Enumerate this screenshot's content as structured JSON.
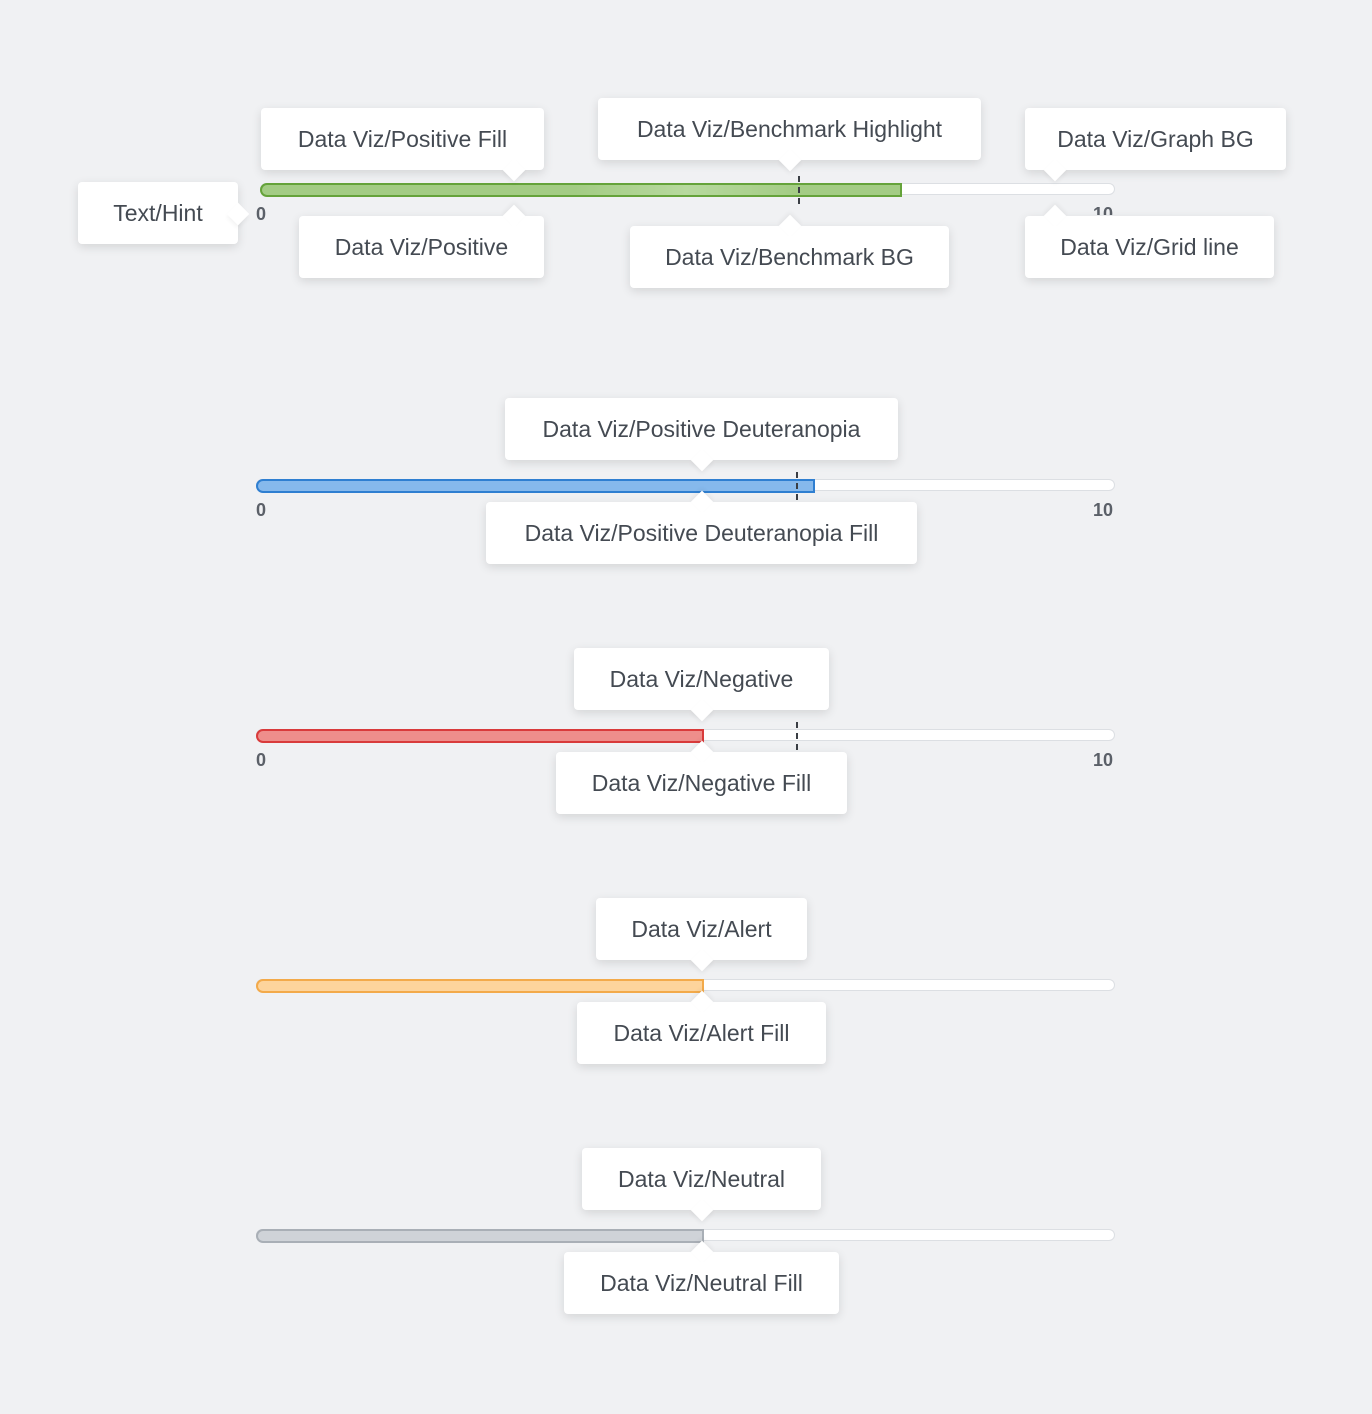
{
  "colors": {
    "positive": "#65a33a",
    "positive_fill": "#a3cc84",
    "benchmark_highlight": "#b7d99e",
    "deuteranopia": "#2f7fd1",
    "deuteranopia_fill": "#86b9ec",
    "negative": "#d93b3b",
    "negative_fill": "#ee8e8b",
    "alert": "#f3aa4a",
    "alert_fill": "#fdd49c",
    "neutral": "#a9afb6",
    "neutral_fill": "#cfd3d8",
    "graph_bg": "#ffffff",
    "grid_line": "#dcdfe3",
    "benchmark_line": "#3a3e44"
  },
  "chart_data": [
    {
      "type": "bar",
      "name": "positive",
      "value": 7.5,
      "benchmark": 6.3,
      "xlim": [
        0,
        10
      ],
      "tick_labels": [
        "0",
        "10"
      ]
    },
    {
      "type": "bar",
      "name": "positive-deuteranopia",
      "value": 6.5,
      "benchmark": 6.3,
      "xlim": [
        0,
        10
      ],
      "tick_labels": [
        "0",
        "10"
      ]
    },
    {
      "type": "bar",
      "name": "negative",
      "value": 5.2,
      "benchmark": 6.3,
      "xlim": [
        0,
        10
      ],
      "tick_labels": [
        "0",
        "10"
      ]
    },
    {
      "type": "bar",
      "name": "alert",
      "value": 5.2,
      "xlim": [
        0,
        10
      ],
      "tick_labels": []
    },
    {
      "type": "bar",
      "name": "neutral",
      "value": 5.2,
      "xlim": [
        0,
        10
      ],
      "tick_labels": []
    }
  ],
  "labels": {
    "positive_fill": "Data Viz/Positive Fill",
    "benchmark_highlight": "Data Viz/Benchmark Highlight",
    "graph_bg": "Data Viz/Graph BG",
    "text_hint": "Text/Hint",
    "positive": "Data Viz/Positive",
    "benchmark_bg": "Data Viz/Benchmark BG",
    "grid_line": "Data Viz/Grid line",
    "deuteranopia": "Data Viz/Positive Deuteranopia",
    "deuteranopia_fill": "Data Viz/Positive Deuteranopia Fill",
    "negative": "Data Viz/Negative",
    "negative_fill": "Data Viz/Negative Fill",
    "alert": "Data Viz/Alert",
    "alert_fill": "Data Viz/Alert Fill",
    "neutral": "Data Viz/Neutral",
    "neutral_fill": "Data Viz/Neutral Fill"
  }
}
